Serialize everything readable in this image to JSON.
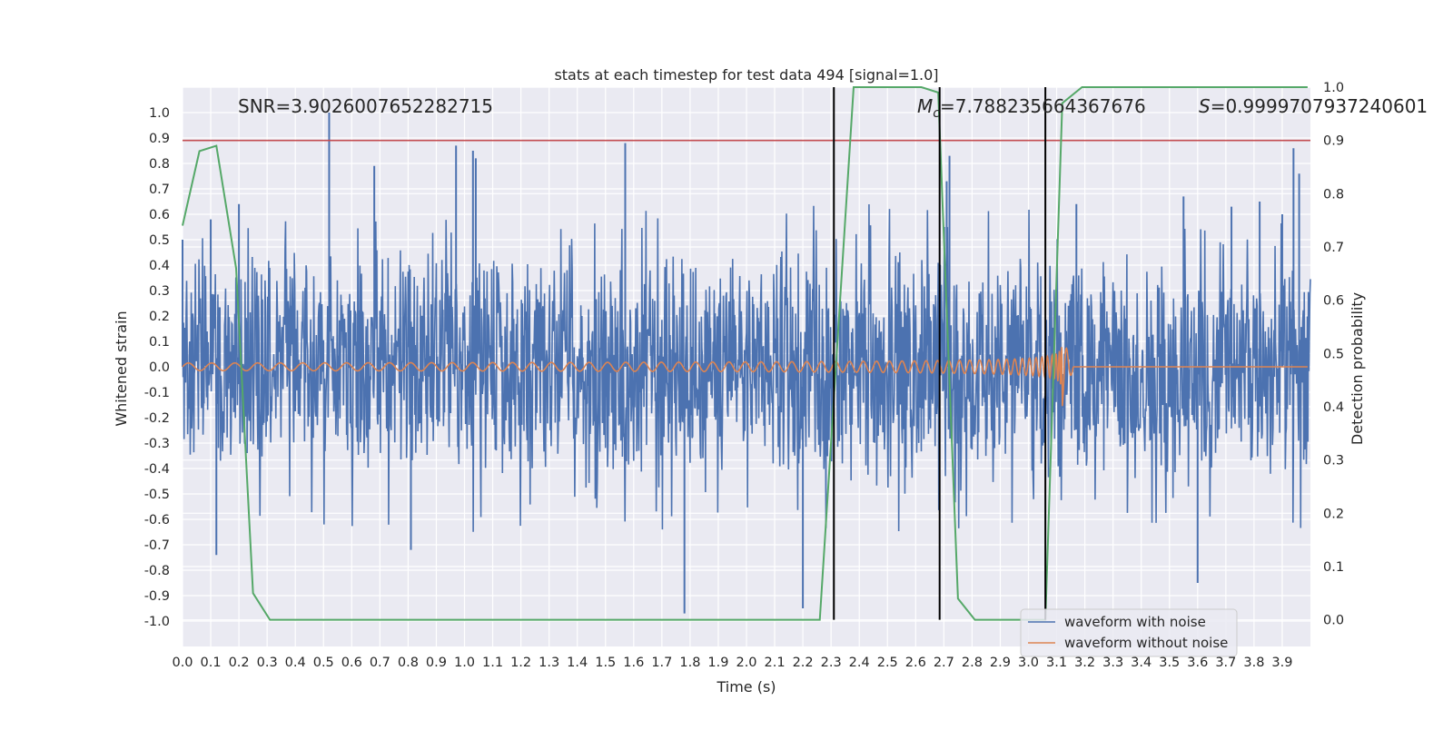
{
  "chart_data": {
    "type": "line",
    "title": "stats at each timestep for test data 494 [signal=1.0]",
    "xlabel": "Time (s)",
    "ylabel_left": "Whitened strain",
    "ylabel_right": "Detection probability",
    "xlim": [
      0.0,
      4.0
    ],
    "ylim_left": [
      -1.1,
      1.1
    ],
    "ylim_right": [
      -0.05,
      1.0
    ],
    "grid": true,
    "x_ticks": [
      0.0,
      0.1,
      0.2,
      0.3,
      0.4,
      0.5,
      0.6,
      0.7,
      0.8,
      0.9,
      1.0,
      1.1,
      1.2,
      1.3,
      1.4,
      1.5,
      1.6,
      1.7,
      1.8,
      1.9,
      2.0,
      2.1,
      2.2,
      2.3,
      2.4,
      2.5,
      2.6,
      2.7,
      2.8,
      2.9,
      3.0,
      3.1,
      3.2,
      3.3,
      3.4,
      3.5,
      3.6,
      3.7,
      3.8,
      3.9
    ],
    "x_tick_labels": [
      "0.0",
      "0.1",
      "0.2",
      "0.3",
      "0.4",
      "0.5",
      "0.6",
      "0.7",
      "0.8",
      "0.9",
      "1.0",
      "1.1",
      "1.2",
      "1.3",
      "1.4",
      "1.5",
      "1.6",
      "1.7",
      "1.8",
      "1.9",
      "2.0",
      "2.1",
      "2.2",
      "2.3",
      "2.4",
      "2.5",
      "2.6",
      "2.7",
      "2.8",
      "2.9",
      "3.0",
      "3.1",
      "3.2",
      "3.3",
      "3.4",
      "3.5",
      "3.6",
      "3.7",
      "3.8",
      "3.9"
    ],
    "y_left_ticks": [
      1.0,
      0.9,
      0.8,
      0.7,
      0.6,
      0.5,
      0.4,
      0.3,
      0.2,
      0.1,
      0.0,
      -0.1,
      -0.2,
      -0.3,
      -0.4,
      -0.5,
      -0.6,
      -0.7,
      -0.8,
      -0.9,
      -1.0
    ],
    "y_left_tick_labels": [
      "1.0",
      "0.9",
      "0.8",
      "0.7",
      "0.6",
      "0.5",
      "0.4",
      "0.3",
      "0.2",
      "0.1",
      "0.0",
      "-0.1",
      "-0.2",
      "-0.3",
      "-0.4",
      "-0.5",
      "-0.6",
      "-0.7",
      "-0.8",
      "-0.9",
      "-1.0"
    ],
    "y_right_ticks": [
      1.0,
      0.9,
      0.8,
      0.7,
      0.6,
      0.5,
      0.4,
      0.3,
      0.2,
      0.1,
      0.0
    ],
    "y_right_tick_labels": [
      "1.0",
      "0.9",
      "0.8",
      "0.7",
      "0.6",
      "0.5",
      "0.4",
      "0.3",
      "0.2",
      "0.1",
      "0.0"
    ],
    "annotations": {
      "snr": "SNR=3.9026007652282715",
      "mc_symbol": "M",
      "mc_sub": "c",
      "mc_value": "=7.788235664367676",
      "s_symbol": "S",
      "s_value": "=0.9999707937240601"
    },
    "threshold": {
      "axis": "right",
      "value": 0.9,
      "color": "#c44e52"
    },
    "vlines_x": [
      2.31,
      2.685,
      3.06
    ],
    "vline_color": "#000000",
    "legend": {
      "placement": "lower-right",
      "entries": [
        {
          "label": "waveform with noise",
          "color": "#4c72b0"
        },
        {
          "label": "waveform without noise",
          "color": "#dd8452"
        }
      ]
    },
    "series": [
      {
        "name": "waveform with noise",
        "axis": "left",
        "color": "#4c72b0",
        "style": "dense-noise",
        "amplitude_typical": 0.38,
        "peaks_x": [
          0.0,
          0.1,
          0.12,
          0.2,
          0.52,
          0.68,
          0.81,
          0.97,
          1.03,
          1.04,
          1.57,
          1.78,
          2.2,
          2.71,
          2.72,
          3.17,
          3.55,
          3.6,
          3.72,
          3.82,
          3.9,
          3.94,
          3.96
        ],
        "peaks_y": [
          0.5,
          0.58,
          -0.74,
          0.64,
          1.0,
          0.79,
          -0.72,
          0.87,
          0.85,
          0.82,
          0.88,
          -0.97,
          -0.95,
          0.73,
          0.83,
          0.64,
          0.67,
          -0.85,
          0.63,
          0.65,
          0.6,
          0.86,
          0.76
        ],
        "color_hex": "#4c72b0"
      },
      {
        "name": "waveform without noise",
        "axis": "left",
        "color": "#dd8452",
        "style": "chirp",
        "amplitude_start": 0.015,
        "amplitude_peak": 0.12,
        "merger_x": 3.12,
        "ringdown_x": 3.14
      },
      {
        "axis": "right",
        "color": "#55a868",
        "x": [
          0.0,
          0.06,
          0.12,
          0.19,
          0.25,
          0.31,
          2.2,
          2.26,
          2.38,
          2.62,
          2.68,
          2.75,
          2.81,
          3.06,
          3.12,
          3.19,
          3.99
        ],
        "y": [
          0.74,
          0.88,
          0.89,
          0.66,
          0.05,
          0.0,
          0.0,
          0.0,
          1.0,
          1.0,
          0.99,
          0.04,
          0.0,
          0.0,
          0.97,
          1.0,
          1.0
        ]
      }
    ]
  }
}
